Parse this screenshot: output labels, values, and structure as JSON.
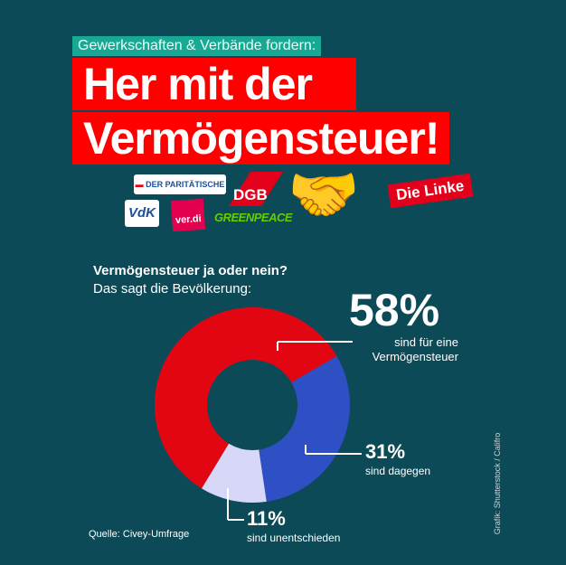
{
  "header": {
    "kicker": "Gewerkschaften & Verbände fordern:",
    "line1": "Her mit der",
    "line2": "Vermögensteuer!"
  },
  "logos": {
    "paritaetische": "DER PARITÄTISCHE",
    "vdk": "VdK",
    "verdi": "ver.di",
    "dgb": "DGB",
    "greenpeace": "GREENPEACE",
    "linke": "Die Linke"
  },
  "survey": {
    "question": "Vermögensteuer ja oder nein?",
    "subtitle": "Das sagt die Bevölkerung:"
  },
  "chart_data": {
    "type": "pie",
    "title": "Vermögensteuer ja oder nein?",
    "subtitle": "Das sagt die Bevölkerung:",
    "categories": [
      "sind für eine Vermögensteuer",
      "sind dagegen",
      "sind unentschieden"
    ],
    "values": [
      58,
      31,
      11
    ],
    "labels": [
      "58%",
      "31%",
      "11%"
    ],
    "colors": [
      "#e20613",
      "#2f4fc4",
      "#d7d7f7"
    ],
    "donut": true
  },
  "source": "Quelle: Civey-Umfrage",
  "credit": "Grafik: Shutterstock / Califro"
}
